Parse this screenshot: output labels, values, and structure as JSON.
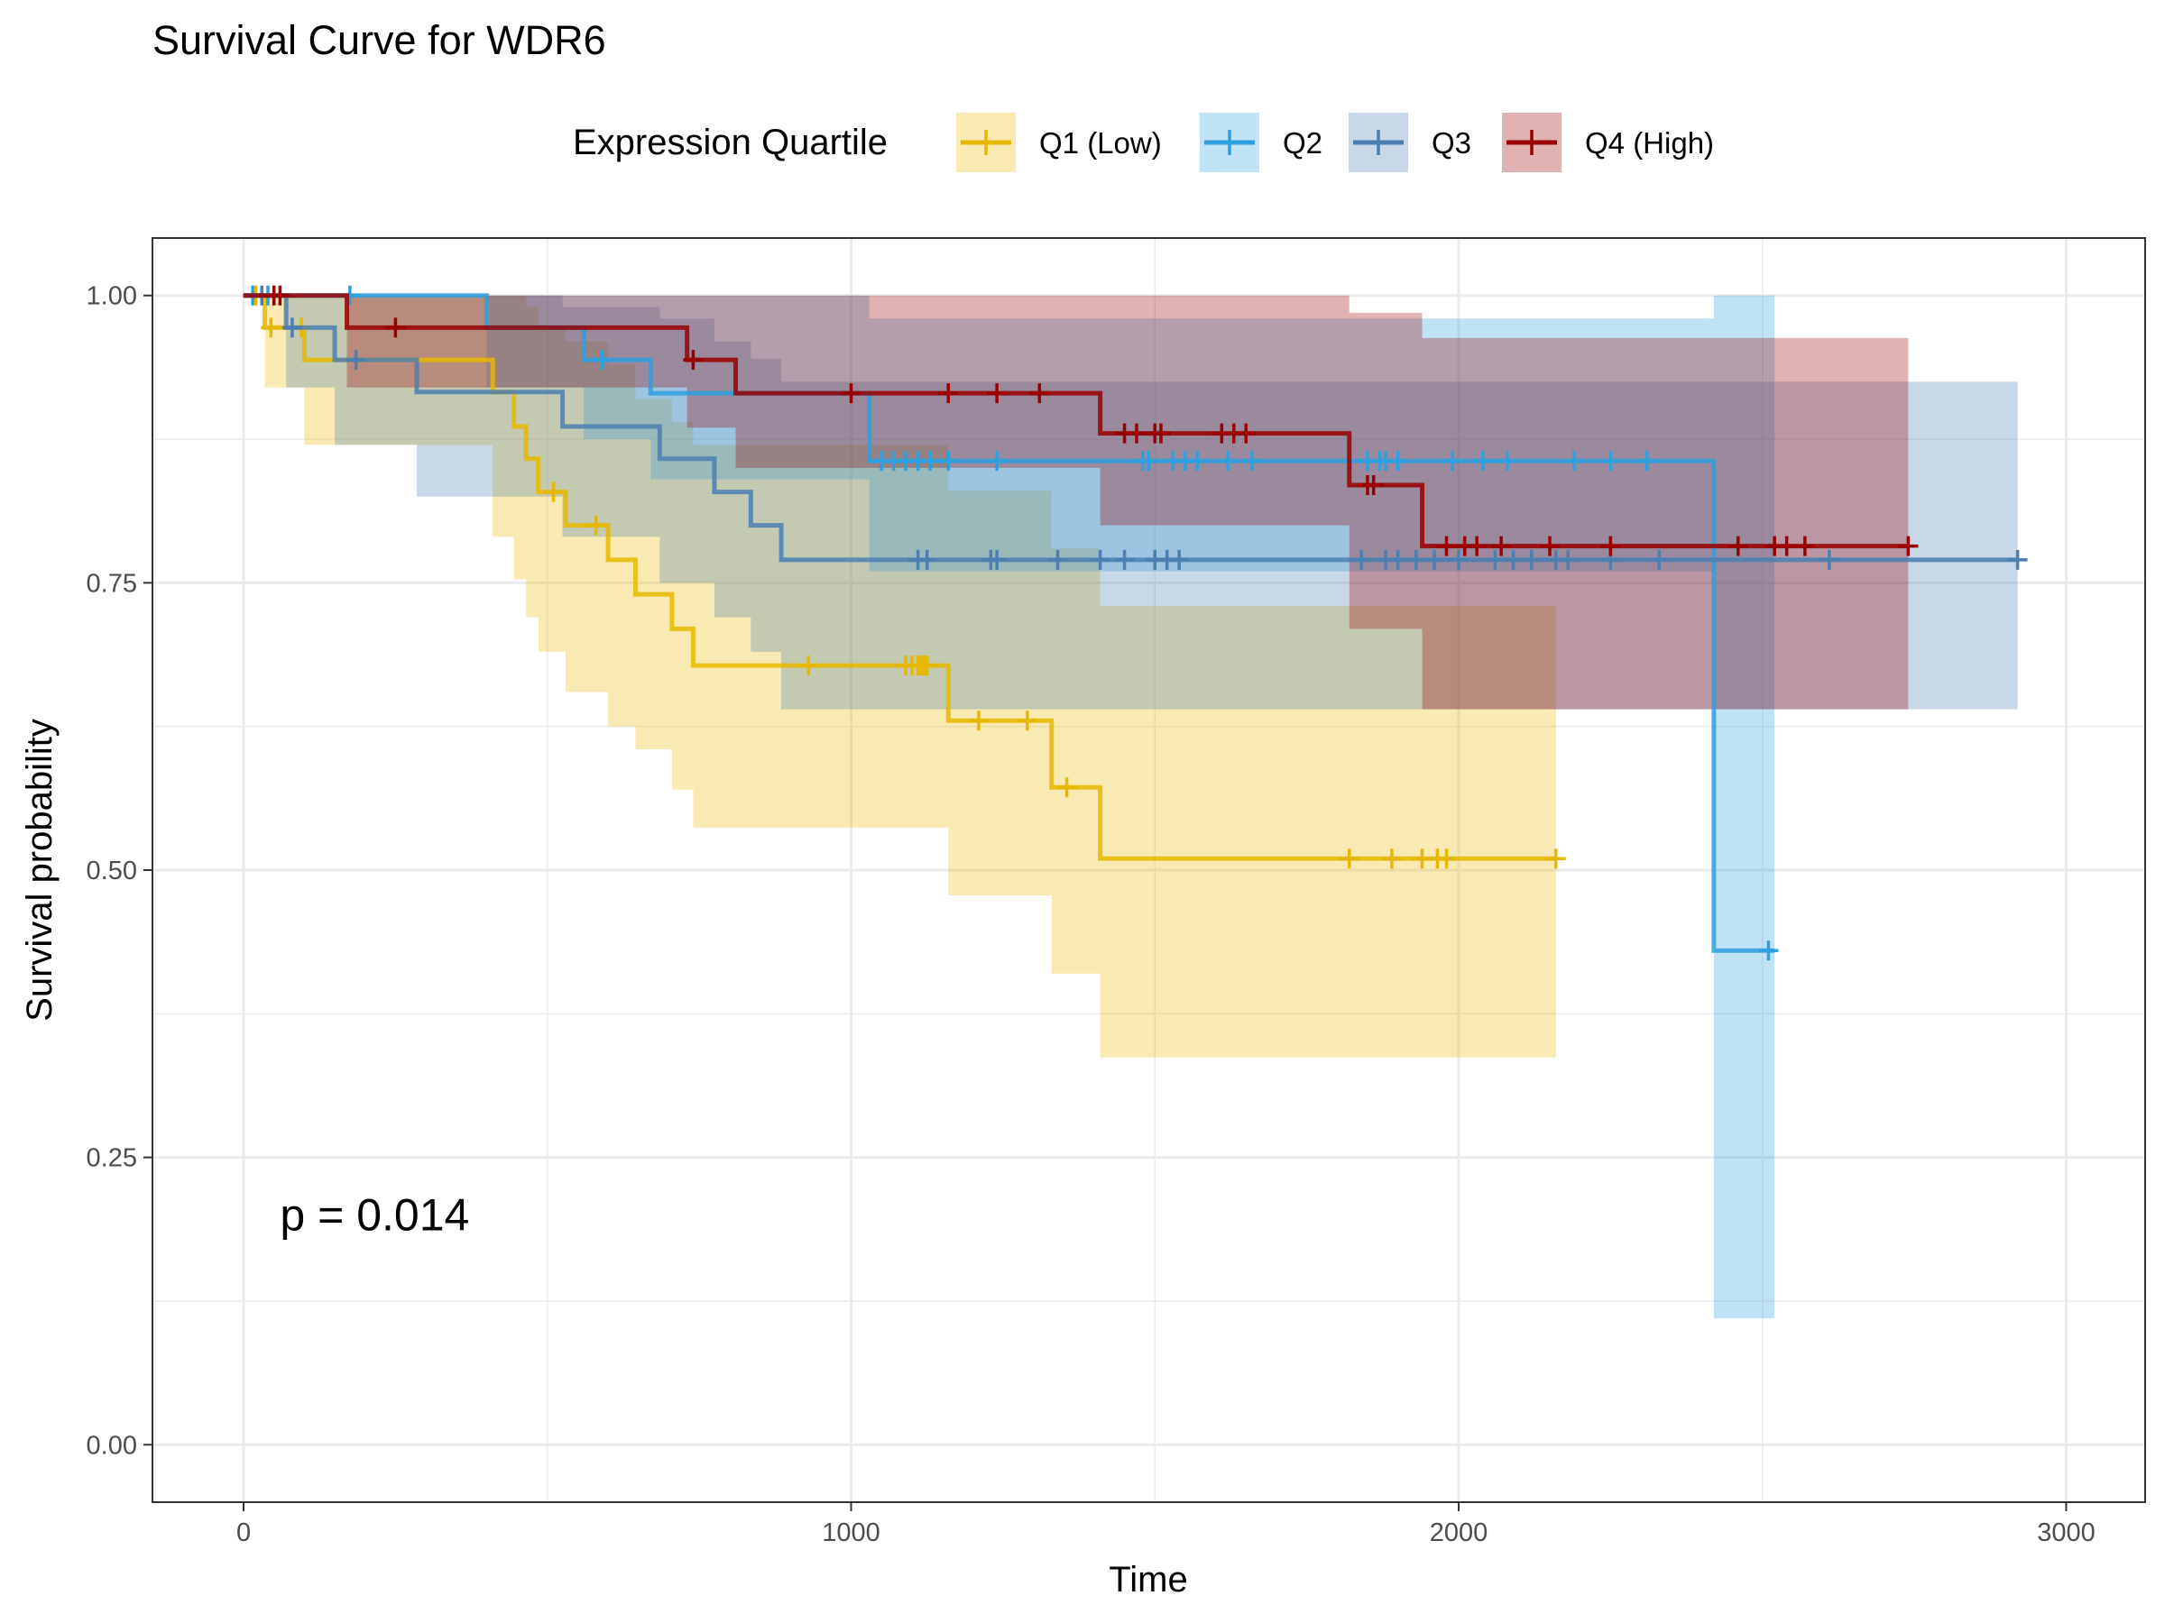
{
  "chart_data": {
    "type": "line",
    "subtype": "kaplan-meier",
    "title": "Survival Curve for WDR6",
    "xlabel": "Time",
    "ylabel": "Survival probability",
    "xlim": [
      -150,
      3130
    ],
    "ylim": [
      -0.05,
      1.05
    ],
    "x_ticks": [
      {
        "value": 0,
        "label": "0"
      },
      {
        "value": 1000,
        "label": "1000"
      },
      {
        "value": 2000,
        "label": "2000"
      },
      {
        "value": 3000,
        "label": "3000"
      }
    ],
    "y_ticks": [
      {
        "value": 0,
        "label": "0.00"
      },
      {
        "value": 0.25,
        "label": "0.25"
      },
      {
        "value": 0.5,
        "label": "0.50"
      },
      {
        "value": 0.75,
        "label": "0.75"
      },
      {
        "value": 1,
        "label": "1.00"
      }
    ],
    "grid": true,
    "legend": {
      "title": "Expression Quartile",
      "position": "top"
    },
    "annotation": {
      "text": "p = 0.014",
      "x": 60,
      "y": 0.2
    },
    "series": [
      {
        "name": "Q1 (Low)",
        "color": "#E7B800",
        "steps": [
          [
            0,
            1.0
          ],
          [
            35,
            0.972
          ],
          [
            100,
            0.944
          ],
          [
            410,
            0.916
          ],
          [
            445,
            0.886
          ],
          [
            465,
            0.858
          ],
          [
            485,
            0.829
          ],
          [
            530,
            0.8
          ],
          [
            600,
            0.77
          ],
          [
            645,
            0.74
          ],
          [
            705,
            0.71
          ],
          [
            740,
            0.678
          ],
          [
            1160,
            0.63
          ],
          [
            1330,
            0.572
          ],
          [
            1410,
            0.51
          ],
          [
            2160,
            0.51
          ]
        ],
        "ci": [
          [
            0,
            1.0,
            1.0
          ],
          [
            35,
            1.0,
            0.92
          ],
          [
            100,
            1.0,
            0.87
          ],
          [
            410,
            1.0,
            0.79
          ],
          [
            445,
            1.0,
            0.753
          ],
          [
            465,
            0.99,
            0.72
          ],
          [
            485,
            0.97,
            0.69
          ],
          [
            530,
            0.96,
            0.655
          ],
          [
            600,
            0.94,
            0.625
          ],
          [
            645,
            0.91,
            0.605
          ],
          [
            705,
            0.89,
            0.57
          ],
          [
            740,
            0.87,
            0.537
          ],
          [
            1160,
            0.83,
            0.478
          ],
          [
            1330,
            0.78,
            0.41
          ],
          [
            1410,
            0.73,
            0.337
          ],
          [
            2160,
            0.73,
            0.337
          ]
        ],
        "censors": [
          [
            20,
            1.0
          ],
          [
            45,
            0.972
          ],
          [
            95,
            0.972
          ],
          [
            510,
            0.829
          ],
          [
            580,
            0.8
          ],
          [
            930,
            0.678
          ],
          [
            1090,
            0.678
          ],
          [
            1100,
            0.678
          ],
          [
            1110,
            0.678
          ],
          [
            1115,
            0.678
          ],
          [
            1120,
            0.678
          ],
          [
            1125,
            0.678
          ],
          [
            1210,
            0.63
          ],
          [
            1290,
            0.63
          ],
          [
            1355,
            0.572
          ],
          [
            1820,
            0.51
          ],
          [
            1890,
            0.51
          ],
          [
            1940,
            0.51
          ],
          [
            1965,
            0.51
          ],
          [
            1980,
            0.51
          ],
          [
            2160,
            0.51
          ]
        ]
      },
      {
        "name": "Q2",
        "color": "#2E9FDF",
        "steps": [
          [
            0,
            1.0
          ],
          [
            400,
            0.972
          ],
          [
            560,
            0.944
          ],
          [
            670,
            0.915
          ],
          [
            1030,
            0.856
          ],
          [
            2420,
            0.43
          ],
          [
            2520,
            0.43
          ]
        ],
        "ci": [
          [
            0,
            1.0,
            1.0
          ],
          [
            400,
            1.0,
            0.92
          ],
          [
            560,
            1.0,
            0.875
          ],
          [
            670,
            1.0,
            0.84
          ],
          [
            1030,
            0.98,
            0.76
          ],
          [
            2420,
            1.0,
            0.11
          ],
          [
            2520,
            1.0,
            0.11
          ]
        ],
        "censors": [
          [
            15,
            1.0
          ],
          [
            40,
            1.0
          ],
          [
            175,
            1.0
          ],
          [
            590,
            0.944
          ],
          [
            1050,
            0.856
          ],
          [
            1070,
            0.856
          ],
          [
            1090,
            0.856
          ],
          [
            1110,
            0.856
          ],
          [
            1130,
            0.856
          ],
          [
            1160,
            0.856
          ],
          [
            1240,
            0.856
          ],
          [
            1480,
            0.856
          ],
          [
            1490,
            0.856
          ],
          [
            1530,
            0.856
          ],
          [
            1550,
            0.856
          ],
          [
            1570,
            0.856
          ],
          [
            1620,
            0.856
          ],
          [
            1660,
            0.856
          ],
          [
            1850,
            0.856
          ],
          [
            1870,
            0.856
          ],
          [
            1880,
            0.856
          ],
          [
            1900,
            0.856
          ],
          [
            1990,
            0.856
          ],
          [
            2040,
            0.856
          ],
          [
            2080,
            0.856
          ],
          [
            2190,
            0.856
          ],
          [
            2250,
            0.856
          ],
          [
            2310,
            0.856
          ],
          [
            2510,
            0.43
          ]
        ]
      },
      {
        "name": "Q3",
        "color": "#4B7FB2",
        "steps": [
          [
            0,
            1.0
          ],
          [
            70,
            0.972
          ],
          [
            150,
            0.944
          ],
          [
            285,
            0.916
          ],
          [
            525,
            0.886
          ],
          [
            685,
            0.858
          ],
          [
            775,
            0.829
          ],
          [
            835,
            0.8
          ],
          [
            885,
            0.77
          ],
          [
            2920,
            0.77
          ]
        ],
        "ci": [
          [
            0,
            1.0,
            1.0
          ],
          [
            70,
            1.0,
            0.92
          ],
          [
            150,
            1.0,
            0.87
          ],
          [
            285,
            1.0,
            0.825
          ],
          [
            525,
            0.99,
            0.79
          ],
          [
            685,
            0.98,
            0.75
          ],
          [
            775,
            0.96,
            0.72
          ],
          [
            835,
            0.945,
            0.69
          ],
          [
            885,
            0.925,
            0.64
          ],
          [
            2920,
            0.925,
            0.64
          ]
        ],
        "censors": [
          [
            30,
            1.0
          ],
          [
            80,
            0.972
          ],
          [
            185,
            0.944
          ],
          [
            1110,
            0.77
          ],
          [
            1125,
            0.77
          ],
          [
            1230,
            0.77
          ],
          [
            1240,
            0.77
          ],
          [
            1340,
            0.77
          ],
          [
            1410,
            0.77
          ],
          [
            1450,
            0.77
          ],
          [
            1500,
            0.77
          ],
          [
            1520,
            0.77
          ],
          [
            1540,
            0.77
          ],
          [
            1840,
            0.77
          ],
          [
            1880,
            0.77
          ],
          [
            1900,
            0.77
          ],
          [
            1930,
            0.77
          ],
          [
            1960,
            0.77
          ],
          [
            2000,
            0.77
          ],
          [
            2060,
            0.77
          ],
          [
            2090,
            0.77
          ],
          [
            2120,
            0.77
          ],
          [
            2160,
            0.77
          ],
          [
            2180,
            0.77
          ],
          [
            2250,
            0.77
          ],
          [
            2330,
            0.77
          ],
          [
            2610,
            0.77
          ],
          [
            2920,
            0.77
          ]
        ]
      },
      {
        "name": "Q4 (High)",
        "color": "#990000",
        "steps": [
          [
            0,
            1.0
          ],
          [
            170,
            0.972
          ],
          [
            730,
            0.944
          ],
          [
            810,
            0.915
          ],
          [
            1410,
            0.88
          ],
          [
            1820,
            0.835
          ],
          [
            1940,
            0.782
          ],
          [
            2740,
            0.782
          ]
        ],
        "ci": [
          [
            0,
            1.0,
            1.0
          ],
          [
            170,
            1.0,
            0.92
          ],
          [
            730,
            1.0,
            0.885
          ],
          [
            810,
            1.0,
            0.85
          ],
          [
            1410,
            1.0,
            0.8
          ],
          [
            1820,
            0.985,
            0.71
          ],
          [
            1940,
            0.963,
            0.64
          ],
          [
            2740,
            0.963,
            0.64
          ]
        ],
        "censors": [
          [
            50,
            1.0
          ],
          [
            60,
            1.0
          ],
          [
            250,
            0.972
          ],
          [
            740,
            0.944
          ],
          [
            1000,
            0.915
          ],
          [
            1160,
            0.915
          ],
          [
            1240,
            0.915
          ],
          [
            1310,
            0.915
          ],
          [
            1450,
            0.88
          ],
          [
            1470,
            0.88
          ],
          [
            1500,
            0.88
          ],
          [
            1510,
            0.88
          ],
          [
            1610,
            0.88
          ],
          [
            1630,
            0.88
          ],
          [
            1650,
            0.88
          ],
          [
            1850,
            0.835
          ],
          [
            1860,
            0.835
          ],
          [
            1980,
            0.782
          ],
          [
            2010,
            0.782
          ],
          [
            2030,
            0.782
          ],
          [
            2070,
            0.782
          ],
          [
            2150,
            0.782
          ],
          [
            2250,
            0.782
          ],
          [
            2460,
            0.782
          ],
          [
            2520,
            0.782
          ],
          [
            2540,
            0.782
          ],
          [
            2570,
            0.782
          ],
          [
            2740,
            0.782
          ]
        ]
      }
    ]
  }
}
